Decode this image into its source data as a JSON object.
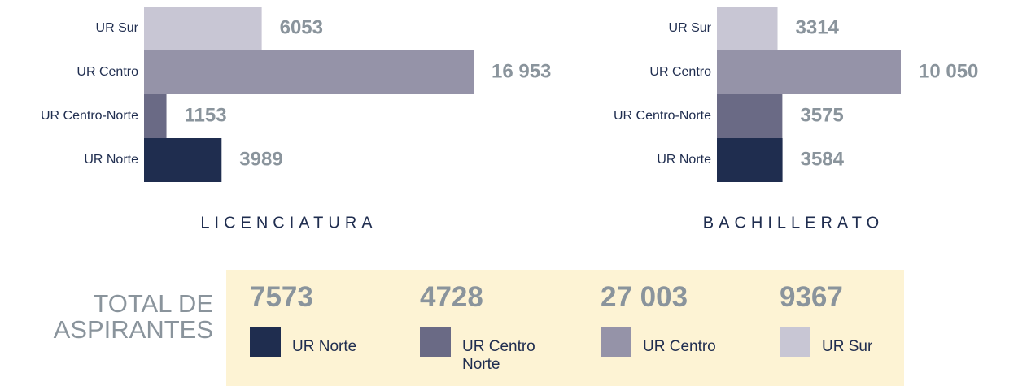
{
  "chart_data": [
    {
      "type": "bar",
      "orientation": "horizontal",
      "title": "LICENCIATURA",
      "categories": [
        "UR Sur",
        "UR Centro",
        "UR Centro-Norte",
        "UR Norte"
      ],
      "values": [
        6053,
        16953,
        1153,
        3989
      ],
      "value_labels": [
        "6053",
        "16 953",
        "1153",
        "3989"
      ],
      "colors": [
        "#c8c6d4",
        "#9593a8",
        "#6a6a85",
        "#1f2d4f"
      ]
    },
    {
      "type": "bar",
      "orientation": "horizontal",
      "title": "BACHILLERATO",
      "categories": [
        "UR Sur",
        "UR Centro",
        "UR Centro-Norte",
        "UR Norte"
      ],
      "values": [
        3314,
        10050,
        3575,
        3584
      ],
      "value_labels": [
        "3314",
        "10 050",
        "3575",
        "3584"
      ],
      "colors": [
        "#c8c6d4",
        "#9593a8",
        "#6a6a85",
        "#1f2d4f"
      ]
    }
  ],
  "totals": {
    "title": "TOTAL DE ASPIRANTES",
    "values": [
      7573,
      4728,
      {
        "value": 27003,
        "label": "27 003"
      },
      9367
    ],
    "categories": [
      "UR Norte",
      "UR Centro Norte",
      "UR Centro",
      "UR Sur"
    ],
    "colors": [
      "#1f2d4f",
      "#6a6a85",
      "#9593a8",
      "#c8c6d4"
    ]
  }
}
